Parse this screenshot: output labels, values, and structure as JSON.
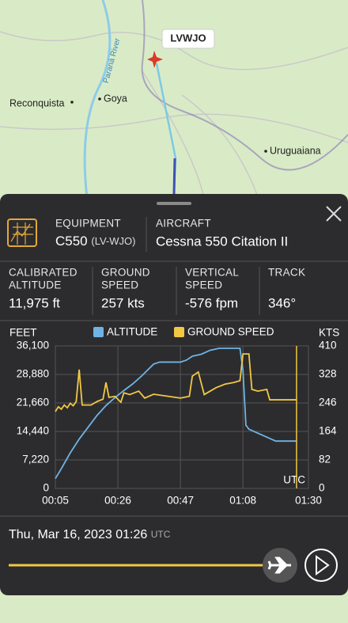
{
  "map": {
    "callsign": "LVWJO",
    "places": [
      "Reconquista",
      "Goya",
      "Uruguaiana"
    ],
    "river": "Paraná River"
  },
  "panel": {
    "equipment_label": "EQUIPMENT",
    "equipment": "C550",
    "registration": "(LV-WJO)",
    "aircraft_label": "AIRCRAFT",
    "aircraft": "Cessna 550 Citation II",
    "stats": [
      {
        "label": [
          "CALIBRATED",
          "ALTITUDE"
        ],
        "value": "11,975 ft"
      },
      {
        "label": [
          "GROUND",
          "SPEED"
        ],
        "value": "257 kts"
      },
      {
        "label": [
          "VERTICAL",
          "SPEED"
        ],
        "value": "-576 fpm"
      },
      {
        "label": [
          "TRACK"
        ],
        "value": "346°"
      }
    ]
  },
  "chart_data": {
    "type": "line",
    "y_label": "FEET",
    "y2_label": "KTS",
    "utc_label": "UTC",
    "xlim": [
      "00:05",
      "01:30"
    ],
    "xticks": [
      "00:05",
      "00:26",
      "00:47",
      "01:08",
      "01:30"
    ],
    "ylim": [
      0,
      36100
    ],
    "yticks": [
      0,
      {
        "value": 7220,
        "label": "7,220"
      },
      {
        "value": 14440,
        "label": "14,440"
      },
      {
        "value": 21660,
        "label": "21,660"
      },
      {
        "value": 28880,
        "label": "28,880"
      },
      {
        "value": 36100,
        "label": "36,100"
      }
    ],
    "y2lim": [
      0,
      410
    ],
    "y2ticks": [
      0,
      82,
      164,
      246,
      328,
      410
    ],
    "grid": true,
    "series": [
      {
        "name": "ALTITUDE",
        "color": "#6fb3e6",
        "axis": "y",
        "x": [
          "00:05",
          "00:07",
          "00:10",
          "00:13",
          "00:16",
          "00:19",
          "00:22",
          "00:25",
          "00:28",
          "00:31",
          "00:34",
          "00:36",
          "00:38",
          "00:40",
          "00:47",
          "00:49",
          "00:51",
          "00:54",
          "00:57",
          "01:00",
          "01:07",
          "01:08",
          "01:09",
          "01:10",
          "01:13",
          "01:16",
          "01:19",
          "01:26"
        ],
        "values": [
          2500,
          5000,
          9000,
          12500,
          15500,
          18500,
          21000,
          23000,
          24800,
          26500,
          28500,
          30000,
          31500,
          32000,
          32000,
          32500,
          33500,
          34000,
          35000,
          35500,
          35500,
          30000,
          16000,
          15000,
          14000,
          13000,
          12000,
          12000
        ]
      },
      {
        "name": "GROUND SPEED",
        "color": "#f2c744",
        "axis": "y2",
        "x": [
          "00:05",
          "00:06",
          "00:07",
          "00:08",
          "00:09",
          "00:10",
          "00:11",
          "00:12",
          "00:13",
          "00:14",
          "00:17",
          "00:19",
          "00:21",
          "00:22",
          "00:23",
          "00:25",
          "00:27",
          "00:28",
          "00:30",
          "00:33",
          "00:35",
          "00:38",
          "00:47",
          "00:50",
          "00:51",
          "00:53",
          "00:55",
          "00:57",
          "00:59",
          "01:02",
          "01:05",
          "01:07",
          "01:08",
          "01:10",
          "01:11",
          "01:13",
          "01:16",
          "01:17",
          "01:26"
        ],
        "values": [
          221,
          235,
          228,
          240,
          232,
          245,
          238,
          250,
          342,
          240,
          240,
          250,
          257,
          305,
          262,
          265,
          248,
          275,
          270,
          280,
          260,
          271,
          260,
          265,
          323,
          335,
          270,
          280,
          290,
          300,
          305,
          310,
          387,
          387,
          285,
          280,
          285,
          255,
          255
        ]
      }
    ]
  },
  "timeline": {
    "date": "Thu, Mar 16, 2023",
    "time": "01:26",
    "zone": "UTC"
  }
}
